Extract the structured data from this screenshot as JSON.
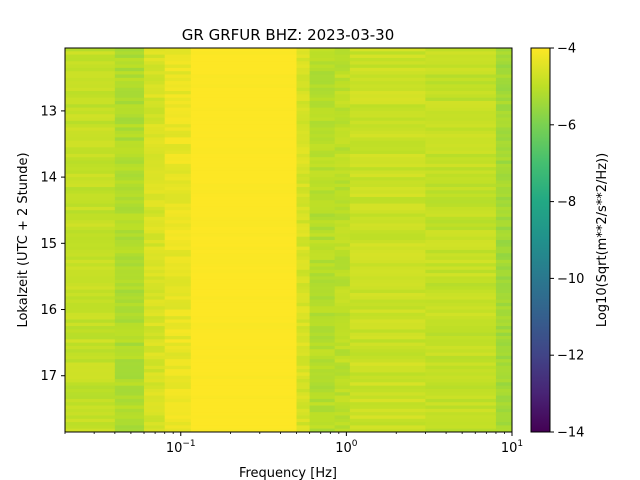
{
  "chart_data": {
    "type": "heatmap",
    "title": "GR GRFUR  BHZ: 2023-03-30",
    "xlabel": "Frequency [Hz]",
    "ylabel": "Lokalzeit (UTC + 2 Stunde)",
    "x_scale": "log",
    "xlim": [
      0.02,
      10
    ],
    "ylim": [
      12.05,
      17.85
    ],
    "y_inverted": true,
    "x_ticks": [
      {
        "value": 0.1,
        "base": "10",
        "exp": "−1"
      },
      {
        "value": 1,
        "base": "10",
        "exp": "0"
      },
      {
        "value": 10,
        "base": "10",
        "exp": "1"
      }
    ],
    "y_ticks": [
      {
        "value": 13,
        "label": "13"
      },
      {
        "value": 14,
        "label": "14"
      },
      {
        "value": 15,
        "label": "15"
      },
      {
        "value": 16,
        "label": "16"
      },
      {
        "value": 17,
        "label": "17"
      }
    ],
    "colorbar": {
      "label": "Log10(Sqrt(m**2/s**2/Hz))",
      "colormap": "viridis",
      "range": [
        -14,
        -4
      ],
      "ticks": [
        {
          "value": -4,
          "label": "−4"
        },
        {
          "value": -6,
          "label": "−6"
        },
        {
          "value": -8,
          "label": "−8"
        },
        {
          "value": -10,
          "label": "−10"
        },
        {
          "value": -12,
          "label": "−12"
        },
        {
          "value": -14,
          "label": "−14"
        }
      ]
    },
    "frequency_bands": [
      {
        "f_min": 0.02,
        "f_max": 0.04,
        "value": -4.9
      },
      {
        "f_min": 0.04,
        "f_max": 0.06,
        "value": -5.2
      },
      {
        "f_min": 0.06,
        "f_max": 0.08,
        "value": -4.6
      },
      {
        "f_min": 0.08,
        "f_max": 0.115,
        "value": -4.3
      },
      {
        "f_min": 0.115,
        "f_max": 0.5,
        "value": -4.0
      },
      {
        "f_min": 0.5,
        "f_max": 0.6,
        "value": -4.6
      },
      {
        "f_min": 0.6,
        "f_max": 0.85,
        "value": -5.1
      },
      {
        "f_min": 0.85,
        "f_max": 1.05,
        "value": -5.0
      },
      {
        "f_min": 1.05,
        "f_max": 3.0,
        "value": -4.8
      },
      {
        "f_min": 3.0,
        "f_max": 8.0,
        "value": -4.9
      },
      {
        "f_min": 8.0,
        "f_max": 10.0,
        "value": -5.4
      }
    ]
  }
}
